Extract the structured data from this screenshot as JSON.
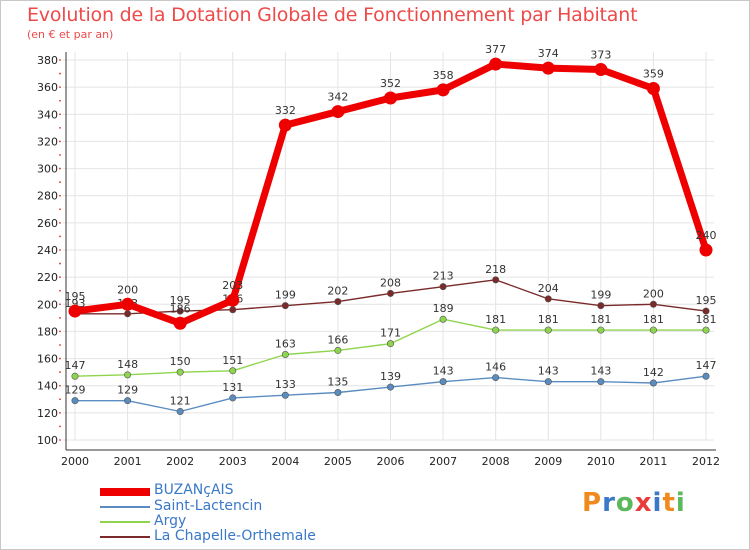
{
  "header": {
    "title": "Evolution de la Dotation Globale de Fonctionnement par Habitant",
    "subtitle": "(en € et par an)"
  },
  "logo": {
    "text": "Proxiti",
    "colors": [
      "#f08a1e",
      "#3a78c8",
      "#5cb85c",
      "#e83c3c",
      "#3a78c8",
      "#f08a1e",
      "#5cb85c"
    ]
  },
  "chart_data": {
    "type": "line",
    "title": "Evolution de la Dotation Globale de Fonctionnement par Habitant",
    "subtitle": "(en € et par an)",
    "xlabel": "",
    "ylabel": "",
    "x": [
      "2000",
      "2001",
      "2002",
      "2003",
      "2004",
      "2005",
      "2006",
      "2007",
      "2008",
      "2009",
      "2010",
      "2011",
      "2012"
    ],
    "ylim": [
      100,
      380
    ],
    "yticks": [
      100,
      120,
      140,
      160,
      180,
      200,
      220,
      240,
      260,
      280,
      300,
      320,
      340,
      360,
      380
    ],
    "grid": true,
    "legend_position": "bottom-left",
    "series": [
      {
        "name": "BUZANçAIS",
        "color": "#ee0000",
        "values": [
          195,
          200,
          186,
          203,
          332,
          342,
          352,
          358,
          377,
          374,
          373,
          359,
          240
        ]
      },
      {
        "name": "Saint-Lactencin",
        "color": "#5a8cc0",
        "values": [
          129,
          129,
          121,
          131,
          133,
          135,
          139,
          143,
          146,
          143,
          143,
          142,
          147
        ]
      },
      {
        "name": "Argy",
        "color": "#8fd44e",
        "values": [
          147,
          148,
          150,
          151,
          163,
          166,
          171,
          189,
          181,
          181,
          181,
          181,
          181
        ]
      },
      {
        "name": "La Chapelle-Orthemale",
        "color": "#7a2a2a",
        "values": [
          193,
          193,
          195,
          196,
          199,
          202,
          208,
          213,
          218,
          204,
          199,
          200,
          195
        ]
      }
    ]
  }
}
